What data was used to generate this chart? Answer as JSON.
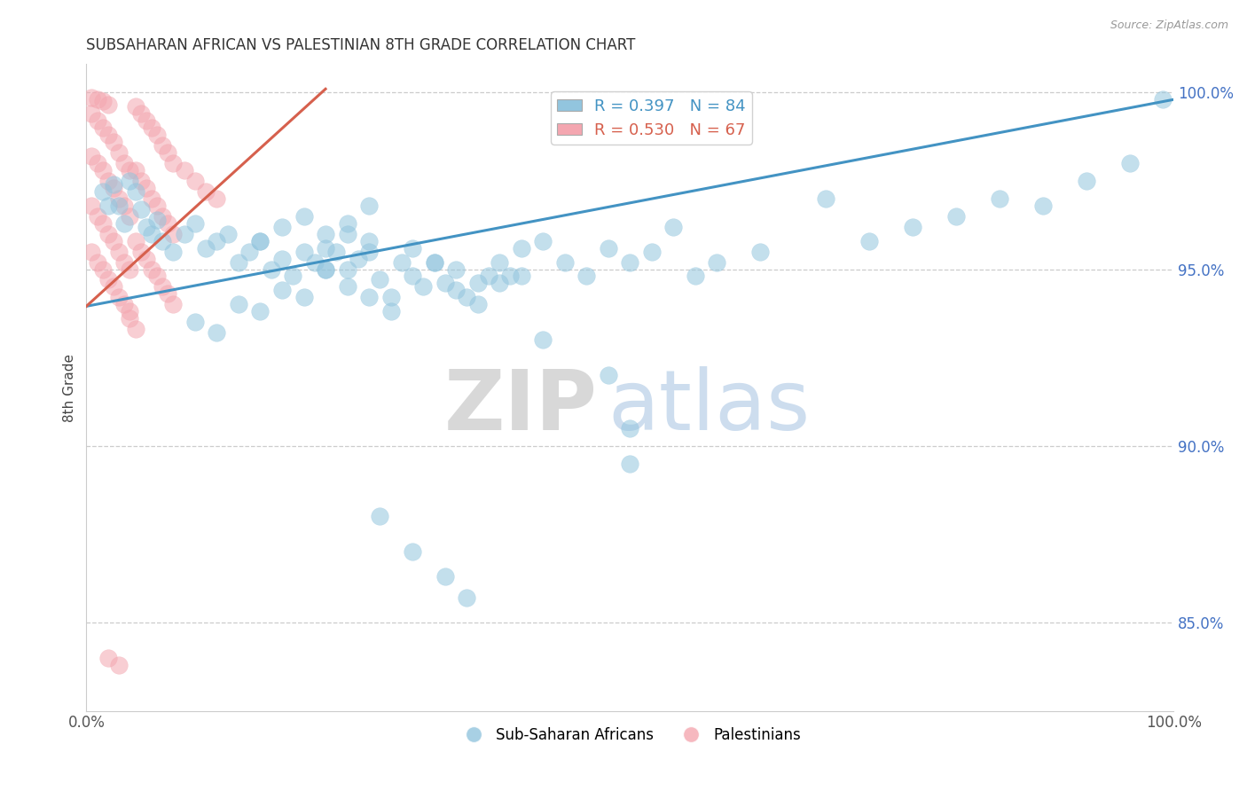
{
  "title": "SUBSAHARAN AFRICAN VS PALESTINIAN 8TH GRADE CORRELATION CHART",
  "source_text": "Source: ZipAtlas.com",
  "ylabel": "8th Grade",
  "x_min": 0.0,
  "x_max": 1.0,
  "y_min": 0.825,
  "y_max": 1.008,
  "y_tick_labels": [
    "85.0%",
    "90.0%",
    "95.0%",
    "100.0%"
  ],
  "y_tick_values": [
    0.85,
    0.9,
    0.95,
    1.0
  ],
  "legend_entries": [
    "Sub-Saharan Africans",
    "Palestinians"
  ],
  "blue_R": 0.397,
  "blue_N": 84,
  "pink_R": 0.53,
  "pink_N": 67,
  "blue_color": "#92c5de",
  "pink_color": "#f4a6b0",
  "blue_line_color": "#4393c3",
  "pink_line_color": "#d6604d",
  "watermark_zip": "ZIP",
  "watermark_atlas": "atlas",
  "blue_line_x": [
    0.0,
    1.0
  ],
  "blue_line_y": [
    0.9395,
    0.998
  ],
  "pink_line_x": [
    0.0,
    0.22
  ],
  "pink_line_y": [
    0.9395,
    1.001
  ],
  "blue_dots": [
    [
      0.015,
      0.972
    ],
    [
      0.02,
      0.968
    ],
    [
      0.025,
      0.974
    ],
    [
      0.03,
      0.968
    ],
    [
      0.035,
      0.963
    ],
    [
      0.04,
      0.975
    ],
    [
      0.045,
      0.972
    ],
    [
      0.05,
      0.967
    ],
    [
      0.055,
      0.962
    ],
    [
      0.06,
      0.96
    ],
    [
      0.065,
      0.964
    ],
    [
      0.07,
      0.958
    ],
    [
      0.08,
      0.955
    ],
    [
      0.09,
      0.96
    ],
    [
      0.1,
      0.963
    ],
    [
      0.11,
      0.956
    ],
    [
      0.12,
      0.958
    ],
    [
      0.13,
      0.96
    ],
    [
      0.14,
      0.952
    ],
    [
      0.15,
      0.955
    ],
    [
      0.16,
      0.958
    ],
    [
      0.17,
      0.95
    ],
    [
      0.18,
      0.953
    ],
    [
      0.19,
      0.948
    ],
    [
      0.2,
      0.955
    ],
    [
      0.21,
      0.952
    ],
    [
      0.22,
      0.95
    ],
    [
      0.23,
      0.955
    ],
    [
      0.24,
      0.95
    ],
    [
      0.25,
      0.953
    ],
    [
      0.26,
      0.958
    ],
    [
      0.27,
      0.947
    ],
    [
      0.28,
      0.942
    ],
    [
      0.29,
      0.952
    ],
    [
      0.3,
      0.956
    ],
    [
      0.31,
      0.945
    ],
    [
      0.32,
      0.952
    ],
    [
      0.33,
      0.946
    ],
    [
      0.34,
      0.95
    ],
    [
      0.35,
      0.942
    ],
    [
      0.36,
      0.946
    ],
    [
      0.37,
      0.948
    ],
    [
      0.38,
      0.952
    ],
    [
      0.39,
      0.948
    ],
    [
      0.4,
      0.956
    ],
    [
      0.42,
      0.958
    ],
    [
      0.44,
      0.952
    ],
    [
      0.46,
      0.948
    ],
    [
      0.48,
      0.956
    ],
    [
      0.5,
      0.952
    ],
    [
      0.52,
      0.955
    ],
    [
      0.54,
      0.962
    ],
    [
      0.56,
      0.948
    ],
    [
      0.58,
      0.952
    ],
    [
      0.62,
      0.955
    ],
    [
      0.68,
      0.97
    ],
    [
      0.72,
      0.958
    ],
    [
      0.76,
      0.962
    ],
    [
      0.8,
      0.965
    ],
    [
      0.84,
      0.97
    ],
    [
      0.88,
      0.968
    ],
    [
      0.92,
      0.975
    ],
    [
      0.96,
      0.98
    ],
    [
      0.99,
      0.998
    ],
    [
      0.14,
      0.94
    ],
    [
      0.16,
      0.938
    ],
    [
      0.18,
      0.944
    ],
    [
      0.2,
      0.942
    ],
    [
      0.22,
      0.95
    ],
    [
      0.24,
      0.945
    ],
    [
      0.26,
      0.942
    ],
    [
      0.28,
      0.938
    ],
    [
      0.3,
      0.948
    ],
    [
      0.32,
      0.952
    ],
    [
      0.34,
      0.944
    ],
    [
      0.36,
      0.94
    ],
    [
      0.38,
      0.946
    ],
    [
      0.4,
      0.948
    ],
    [
      0.16,
      0.958
    ],
    [
      0.18,
      0.962
    ],
    [
      0.2,
      0.965
    ],
    [
      0.22,
      0.96
    ],
    [
      0.24,
      0.963
    ],
    [
      0.26,
      0.968
    ],
    [
      0.1,
      0.935
    ],
    [
      0.12,
      0.932
    ],
    [
      0.22,
      0.956
    ],
    [
      0.24,
      0.96
    ],
    [
      0.26,
      0.955
    ],
    [
      0.42,
      0.93
    ],
    [
      0.48,
      0.92
    ],
    [
      0.27,
      0.88
    ],
    [
      0.3,
      0.87
    ],
    [
      0.33,
      0.863
    ],
    [
      0.35,
      0.857
    ],
    [
      0.5,
      0.895
    ],
    [
      0.5,
      0.905
    ]
  ],
  "pink_dots": [
    [
      0.005,
      0.9985
    ],
    [
      0.01,
      0.998
    ],
    [
      0.015,
      0.9975
    ],
    [
      0.02,
      0.9965
    ],
    [
      0.005,
      0.994
    ],
    [
      0.01,
      0.992
    ],
    [
      0.015,
      0.99
    ],
    [
      0.02,
      0.988
    ],
    [
      0.025,
      0.986
    ],
    [
      0.03,
      0.983
    ],
    [
      0.035,
      0.98
    ],
    [
      0.04,
      0.978
    ],
    [
      0.005,
      0.982
    ],
    [
      0.01,
      0.98
    ],
    [
      0.015,
      0.978
    ],
    [
      0.02,
      0.975
    ],
    [
      0.025,
      0.973
    ],
    [
      0.03,
      0.97
    ],
    [
      0.035,
      0.968
    ],
    [
      0.04,
      0.965
    ],
    [
      0.005,
      0.968
    ],
    [
      0.01,
      0.965
    ],
    [
      0.015,
      0.963
    ],
    [
      0.02,
      0.96
    ],
    [
      0.025,
      0.958
    ],
    [
      0.03,
      0.955
    ],
    [
      0.035,
      0.952
    ],
    [
      0.04,
      0.95
    ],
    [
      0.005,
      0.955
    ],
    [
      0.01,
      0.952
    ],
    [
      0.015,
      0.95
    ],
    [
      0.02,
      0.947
    ],
    [
      0.025,
      0.945
    ],
    [
      0.03,
      0.942
    ],
    [
      0.035,
      0.94
    ],
    [
      0.04,
      0.938
    ],
    [
      0.045,
      0.996
    ],
    [
      0.05,
      0.994
    ],
    [
      0.055,
      0.992
    ],
    [
      0.06,
      0.99
    ],
    [
      0.065,
      0.988
    ],
    [
      0.07,
      0.985
    ],
    [
      0.075,
      0.983
    ],
    [
      0.08,
      0.98
    ],
    [
      0.045,
      0.978
    ],
    [
      0.05,
      0.975
    ],
    [
      0.055,
      0.973
    ],
    [
      0.06,
      0.97
    ],
    [
      0.065,
      0.968
    ],
    [
      0.07,
      0.965
    ],
    [
      0.075,
      0.963
    ],
    [
      0.08,
      0.96
    ],
    [
      0.045,
      0.958
    ],
    [
      0.05,
      0.955
    ],
    [
      0.055,
      0.953
    ],
    [
      0.06,
      0.95
    ],
    [
      0.065,
      0.948
    ],
    [
      0.07,
      0.945
    ],
    [
      0.075,
      0.943
    ],
    [
      0.08,
      0.94
    ],
    [
      0.09,
      0.978
    ],
    [
      0.1,
      0.975
    ],
    [
      0.11,
      0.972
    ],
    [
      0.12,
      0.97
    ],
    [
      0.04,
      0.936
    ],
    [
      0.045,
      0.933
    ],
    [
      0.02,
      0.84
    ],
    [
      0.03,
      0.838
    ]
  ]
}
